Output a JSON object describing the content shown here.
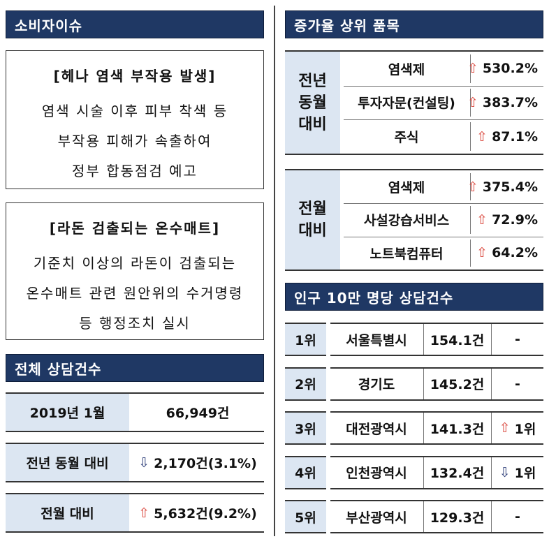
{
  "consumer_issues": {
    "title": "소비자이슈",
    "items": [
      {
        "title": "[헤나 염색 부작용 발생]",
        "lines": [
          "염색 시술 이후 피부 착색 등",
          "부작용 피해가 속출하여",
          "정부 합동점검 예고"
        ]
      },
      {
        "title": "[라돈 검출되는 온수매트]",
        "lines": [
          "기준치 이상의 라돈이 검출되는",
          "온수매트 관련 원안위의 수거명령",
          "등 행정조치 실시"
        ]
      }
    ]
  },
  "total_consultations": {
    "title": "전체 상담건수",
    "rows": [
      {
        "label": "2019년 1월",
        "value": "66,949건"
      },
      {
        "label": "전년 동월 대비",
        "value": "2,170건(3.1%)",
        "trend": "down"
      },
      {
        "label": "전월 대비",
        "value": "5,632건(9.2%)",
        "trend": "up"
      }
    ]
  },
  "top_growth_items": {
    "title": "증가율 상위 품목",
    "groups": [
      {
        "label": "전년 동월 대비",
        "rows": [
          {
            "item": "염색제",
            "rate": "530.2%",
            "trend": "up"
          },
          {
            "item": "투자자문(컨설팅)",
            "rate": "383.7%",
            "trend": "up"
          },
          {
            "item": "주식",
            "rate": "87.1%",
            "trend": "up"
          }
        ]
      },
      {
        "label": "전월 대비",
        "rows": [
          {
            "item": "염색제",
            "rate": "375.4%",
            "trend": "up"
          },
          {
            "item": "사설강습서비스",
            "rate": "72.9%",
            "trend": "up"
          },
          {
            "item": "노트북컴퓨터",
            "rate": "64.2%",
            "trend": "up"
          }
        ]
      }
    ]
  },
  "per_capita_consultations": {
    "title": "인구 10만 명당 상담건수",
    "rows": [
      {
        "rank": "1위",
        "region": "서울특별시",
        "value": "154.1건",
        "change": "-"
      },
      {
        "rank": "2위",
        "region": "경기도",
        "value": "145.2건",
        "change": "-"
      },
      {
        "rank": "3위",
        "region": "대전광역시",
        "value": "141.3건",
        "change": "1위",
        "trend": "up"
      },
      {
        "rank": "4위",
        "region": "인천광역시",
        "value": "132.4건",
        "change": "1위",
        "trend": "down"
      },
      {
        "rank": "5위",
        "region": "부산광역시",
        "value": "129.3건",
        "change": "-"
      }
    ]
  }
}
